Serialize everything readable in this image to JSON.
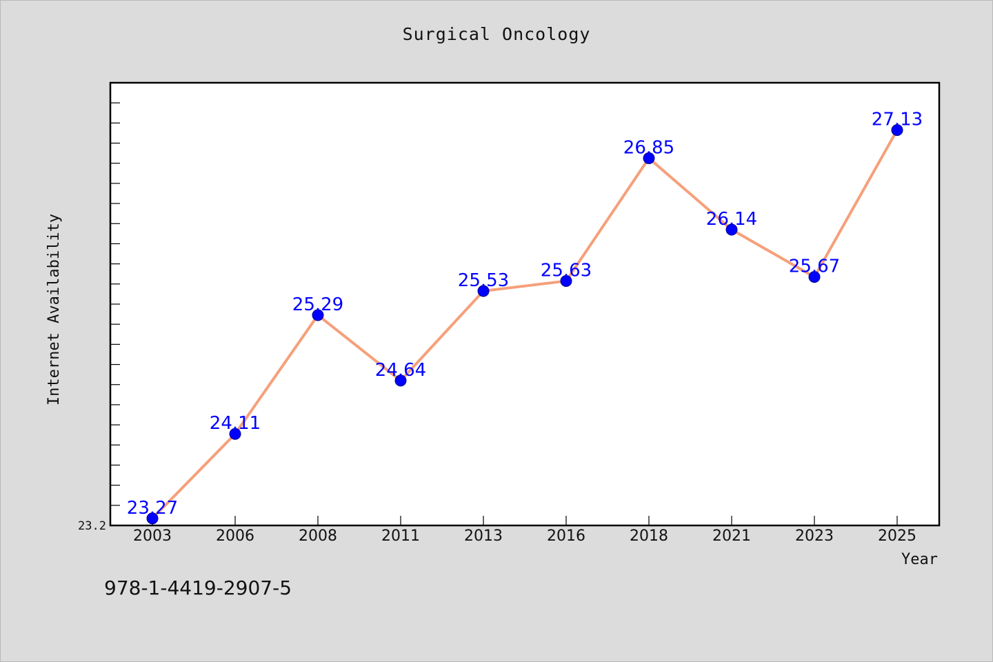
{
  "chart_data": {
    "type": "line",
    "title": "Surgical Oncology",
    "xlabel": "Year",
    "ylabel": "Internet Availability",
    "categories": [
      "2003",
      "2006",
      "2008",
      "2011",
      "2013",
      "2016",
      "2018",
      "2021",
      "2023",
      "2025"
    ],
    "series": [
      {
        "values": [
          23.27,
          24.11,
          25.29,
          24.64,
          25.53,
          25.63,
          26.85,
          26.14,
          25.67,
          27.13
        ],
        "labels": [
          "23.27",
          "24.11",
          "25.29",
          "24.64",
          "25.53",
          "25.63",
          "26.85",
          "26.14",
          "25.67",
          "27.13"
        ]
      }
    ],
    "ytick_labels": [
      "23.2"
    ],
    "ylim": [
      23.2,
      27.6
    ],
    "grid": false,
    "line_color": "#f5a07a",
    "marker_color": "#0000ff",
    "label_color": "#0000ff"
  },
  "footer_text": "978-1-4419-2907-5"
}
